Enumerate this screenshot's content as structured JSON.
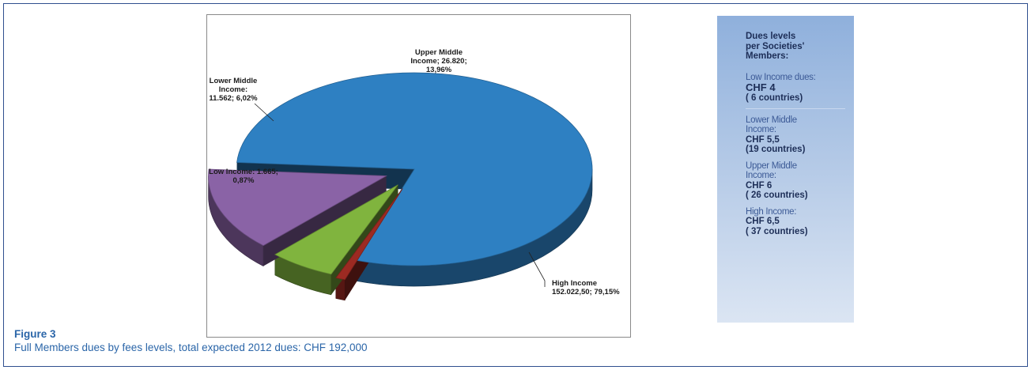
{
  "chart_data": {
    "type": "pie",
    "title": "",
    "slices": [
      {
        "name": "High Income",
        "value": 152022.5,
        "percent": 79.15,
        "color": "#2e80c2",
        "label_lines": [
          "High Income",
          "152.022,50; 79,15%"
        ]
      },
      {
        "name": "Low Income",
        "value": 1665,
        "percent": 0.87,
        "color": "#9c2a22",
        "label_lines": [
          "Low Income: 1.665;",
          "0,87%"
        ]
      },
      {
        "name": "Lower Middle Income",
        "value": 11562,
        "percent": 6.02,
        "color": "#80b43e",
        "label_lines": [
          "Lower Middle",
          "Income:",
          "11.562; 6,02%"
        ]
      },
      {
        "name": "Upper Middle Income",
        "value": 26820,
        "percent": 13.96,
        "color": "#8a63a6",
        "label_lines": [
          "Upper Middle",
          "Income; 26.820;",
          "13,96%"
        ]
      }
    ],
    "style": "3d-exploded"
  },
  "side_panel": {
    "title": "Dues levels\n per Societies'\nMembers:",
    "entries": [
      {
        "label": "Low Income dues:",
        "value": "CHF 4",
        "count": "( 6 countries)"
      },
      {
        "label": "Lower Middle\nIncome:",
        "value": "CHF 5,5",
        "count": "(19  countries)"
      },
      {
        "label": "Upper Middle\nIncome:",
        "value": "CHF 6",
        "count": "( 26 countries)"
      },
      {
        "label": "High Income:",
        "value": "CHF 6,5",
        "count": "( 37 countries)"
      }
    ]
  },
  "figure": {
    "title": "Figure 3",
    "caption": "Full Members dues by fees levels, total expected 2012 dues: CHF 192,000"
  }
}
